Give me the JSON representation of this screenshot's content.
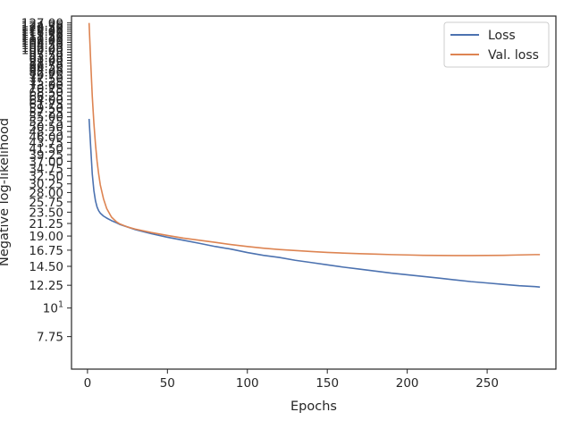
{
  "chart_data": {
    "type": "line",
    "title": "",
    "xlabel": "Epochs",
    "ylabel": "Negative log-likelihood",
    "xlim": [
      -10,
      293
    ],
    "ylim": [
      5.8,
      135
    ],
    "yscale": "log",
    "grid": false,
    "legend_position": "top-right",
    "x_ticks": [
      0,
      50,
      100,
      150,
      200,
      250
    ],
    "x_tick_labels": [
      "0",
      "50",
      "100",
      "150",
      "200",
      "250"
    ],
    "y_ticks": [
      7.75,
      10,
      12.25,
      14.5,
      16.75,
      19,
      21.25,
      23.5,
      25.75,
      28,
      30.25,
      32.5,
      34.75,
      37,
      39.25,
      41.5,
      43.75,
      46,
      48.25,
      50.5,
      52.75,
      55,
      57.25,
      59.5,
      61.75,
      64,
      66.25,
      68.5,
      70.75,
      73,
      75.25,
      77.5,
      79.75,
      82,
      84.25,
      86.5,
      88.75,
      91,
      93.25,
      95.5,
      97.75,
      100,
      102.25,
      104.5,
      106.75,
      109,
      111.25,
      113.5,
      115.75,
      118,
      120.25,
      122.5,
      124.75,
      127
    ],
    "y_tick_labels": [
      "7.75",
      "10^1",
      "12.25",
      "14.50",
      "16.75",
      "19.00",
      "21.25",
      "23.50",
      "25.75",
      "28.00",
      "30.25",
      "32.50",
      "34.75",
      "37.00",
      "39.25",
      "41.50",
      "43.75",
      "46.00",
      "48.25",
      "50.50",
      "52.75",
      "55.00",
      "57.25",
      "59.50",
      "61.75",
      "64.00",
      "66.25",
      "68.50",
      "70.75",
      "73.00",
      "75.25",
      "77.50",
      "79.75",
      "82.00",
      "84.25",
      "86.50",
      "88.75",
      "91.00",
      "93.25",
      "95.50",
      "97.75",
      "100.00",
      "102.25",
      "104.50",
      "106.75",
      "109.00",
      "111.25",
      "113.50",
      "115.75",
      "118.00",
      "120.25",
      "122.50",
      "124.75",
      "127.00"
    ],
    "x": [
      1,
      2,
      3,
      4,
      5,
      6,
      7,
      8,
      10,
      12,
      15,
      18,
      20,
      25,
      30,
      40,
      50,
      60,
      70,
      80,
      90,
      100,
      110,
      120,
      130,
      140,
      150,
      160,
      170,
      180,
      190,
      200,
      210,
      220,
      230,
      240,
      250,
      260,
      270,
      280,
      283
    ],
    "series": [
      {
        "name": "Loss",
        "color": "#4c72b0",
        "values": [
          54,
          42,
          33,
          28.5,
          26,
          24.6,
          23.8,
          23.3,
          22.7,
          22.3,
          21.8,
          21.4,
          21.1,
          20.6,
          20.1,
          19.4,
          18.8,
          18.3,
          17.8,
          17.3,
          16.9,
          16.4,
          16.0,
          15.7,
          15.3,
          15.0,
          14.7,
          14.4,
          14.15,
          13.9,
          13.65,
          13.45,
          13.25,
          13.05,
          12.85,
          12.65,
          12.5,
          12.35,
          12.2,
          12.1,
          12.05
        ]
      },
      {
        "name": "Val. loss",
        "color": "#dd8452",
        "values": [
          127,
          90,
          66,
          52,
          43,
          37,
          33,
          30,
          26.5,
          24.3,
          22.5,
          21.6,
          21.2,
          20.6,
          20.2,
          19.6,
          19.1,
          18.65,
          18.3,
          17.95,
          17.6,
          17.3,
          17.05,
          16.85,
          16.7,
          16.55,
          16.42,
          16.32,
          16.24,
          16.17,
          16.1,
          16.05,
          16.0,
          15.98,
          15.96,
          15.97,
          15.98,
          16.0,
          16.05,
          16.1,
          16.1
        ]
      }
    ]
  }
}
